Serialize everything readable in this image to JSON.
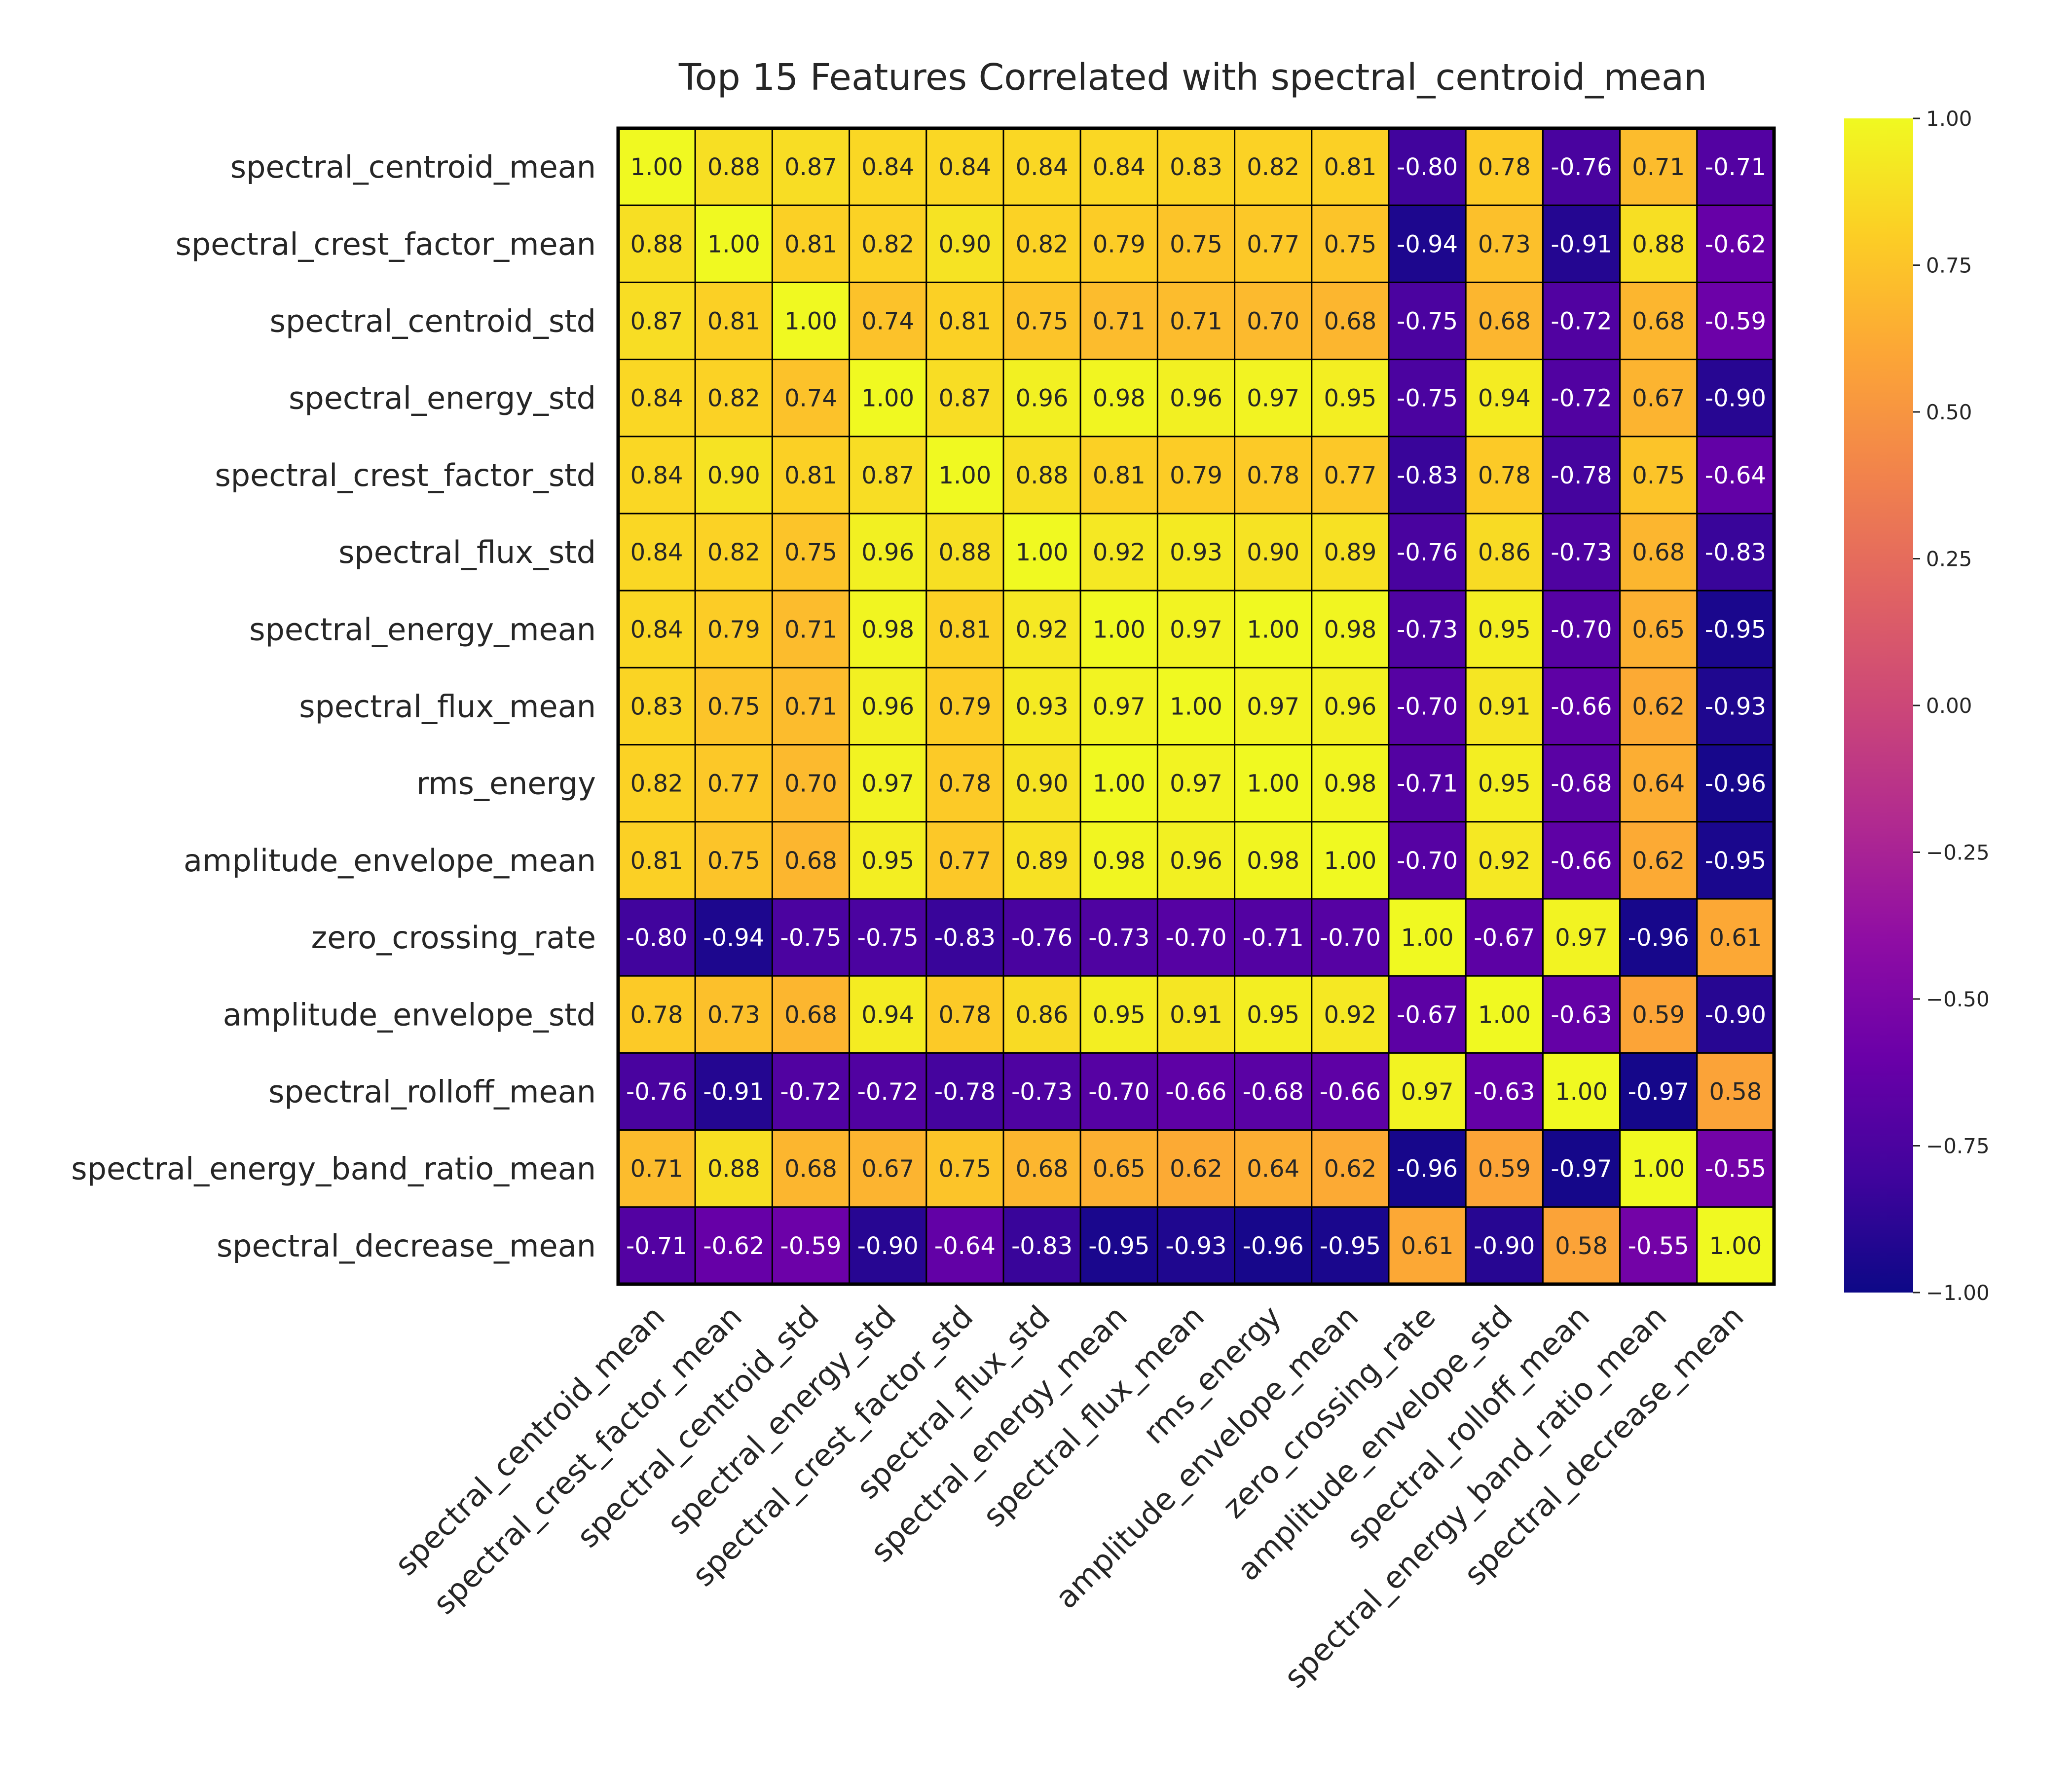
{
  "chart_data": {
    "type": "heatmap",
    "title": "Top 15 Features Correlated with spectral_centroid_mean",
    "rows": [
      "spectral_centroid_mean",
      "spectral_crest_factor_mean",
      "spectral_centroid_std",
      "spectral_energy_std",
      "spectral_crest_factor_std",
      "spectral_flux_std",
      "spectral_energy_mean",
      "spectral_flux_mean",
      "rms_energy",
      "amplitude_envelope_mean",
      "zero_crossing_rate",
      "amplitude_envelope_std",
      "spectral_rolloff_mean",
      "spectral_energy_band_ratio_mean",
      "spectral_decrease_mean"
    ],
    "columns": [
      "spectral_centroid_mean",
      "spectral_crest_factor_mean",
      "spectral_centroid_std",
      "spectral_energy_std",
      "spectral_crest_factor_std",
      "spectral_flux_std",
      "spectral_energy_mean",
      "spectral_flux_mean",
      "rms_energy",
      "amplitude_envelope_mean",
      "zero_crossing_rate",
      "amplitude_envelope_std",
      "spectral_rolloff_mean",
      "spectral_energy_band_ratio_mean",
      "spectral_decrease_mean"
    ],
    "values": [
      [
        1.0,
        0.88,
        0.87,
        0.84,
        0.84,
        0.84,
        0.84,
        0.83,
        0.82,
        0.81,
        -0.8,
        0.78,
        -0.76,
        0.71,
        -0.71
      ],
      [
        0.88,
        1.0,
        0.81,
        0.82,
        0.9,
        0.82,
        0.79,
        0.75,
        0.77,
        0.75,
        -0.94,
        0.73,
        -0.91,
        0.88,
        -0.62
      ],
      [
        0.87,
        0.81,
        1.0,
        0.74,
        0.81,
        0.75,
        0.71,
        0.71,
        0.7,
        0.68,
        -0.75,
        0.68,
        -0.72,
        0.68,
        -0.59
      ],
      [
        0.84,
        0.82,
        0.74,
        1.0,
        0.87,
        0.96,
        0.98,
        0.96,
        0.97,
        0.95,
        -0.75,
        0.94,
        -0.72,
        0.67,
        -0.9
      ],
      [
        0.84,
        0.9,
        0.81,
        0.87,
        1.0,
        0.88,
        0.81,
        0.79,
        0.78,
        0.77,
        -0.83,
        0.78,
        -0.78,
        0.75,
        -0.64
      ],
      [
        0.84,
        0.82,
        0.75,
        0.96,
        0.88,
        1.0,
        0.92,
        0.93,
        0.9,
        0.89,
        -0.76,
        0.86,
        -0.73,
        0.68,
        -0.83
      ],
      [
        0.84,
        0.79,
        0.71,
        0.98,
        0.81,
        0.92,
        1.0,
        0.97,
        1.0,
        0.98,
        -0.73,
        0.95,
        -0.7,
        0.65,
        -0.95
      ],
      [
        0.83,
        0.75,
        0.71,
        0.96,
        0.79,
        0.93,
        0.97,
        1.0,
        0.97,
        0.96,
        -0.7,
        0.91,
        -0.66,
        0.62,
        -0.93
      ],
      [
        0.82,
        0.77,
        0.7,
        0.97,
        0.78,
        0.9,
        1.0,
        0.97,
        1.0,
        0.98,
        -0.71,
        0.95,
        -0.68,
        0.64,
        -0.96
      ],
      [
        0.81,
        0.75,
        0.68,
        0.95,
        0.77,
        0.89,
        0.98,
        0.96,
        0.98,
        1.0,
        -0.7,
        0.92,
        -0.66,
        0.62,
        -0.95
      ],
      [
        -0.8,
        -0.94,
        -0.75,
        -0.75,
        -0.83,
        -0.76,
        -0.73,
        -0.7,
        -0.71,
        -0.7,
        1.0,
        -0.67,
        0.97,
        -0.96,
        0.61
      ],
      [
        0.78,
        0.73,
        0.68,
        0.94,
        0.78,
        0.86,
        0.95,
        0.91,
        0.95,
        0.92,
        -0.67,
        1.0,
        -0.63,
        0.59,
        -0.9
      ],
      [
        -0.76,
        -0.91,
        -0.72,
        -0.72,
        -0.78,
        -0.73,
        -0.7,
        -0.66,
        -0.68,
        -0.66,
        0.97,
        -0.63,
        1.0,
        -0.97,
        0.58
      ],
      [
        0.71,
        0.88,
        0.68,
        0.67,
        0.75,
        0.68,
        0.65,
        0.62,
        0.64,
        0.62,
        -0.96,
        0.59,
        -0.97,
        1.0,
        -0.55
      ],
      [
        -0.71,
        -0.62,
        -0.59,
        -0.9,
        -0.64,
        -0.83,
        -0.95,
        -0.93,
        -0.96,
        -0.95,
        0.61,
        -0.9,
        0.58,
        -0.55,
        1.0
      ]
    ],
    "value_format": "2 decimals",
    "colormap": "plasma",
    "vmin": -1.0,
    "vmax": 1.0,
    "colorbar_ticks": [
      "1.00",
      "0.75",
      "0.50",
      "0.25",
      "0.00",
      "−0.25",
      "−0.50",
      "−0.75",
      "−1.00"
    ],
    "colorbar_tick_values": [
      1.0,
      0.75,
      0.5,
      0.25,
      0.0,
      -0.25,
      -0.5,
      -0.75,
      -1.0
    ],
    "colorbar_placement": "right",
    "cell_border_color": "#000000",
    "grid": false
  }
}
